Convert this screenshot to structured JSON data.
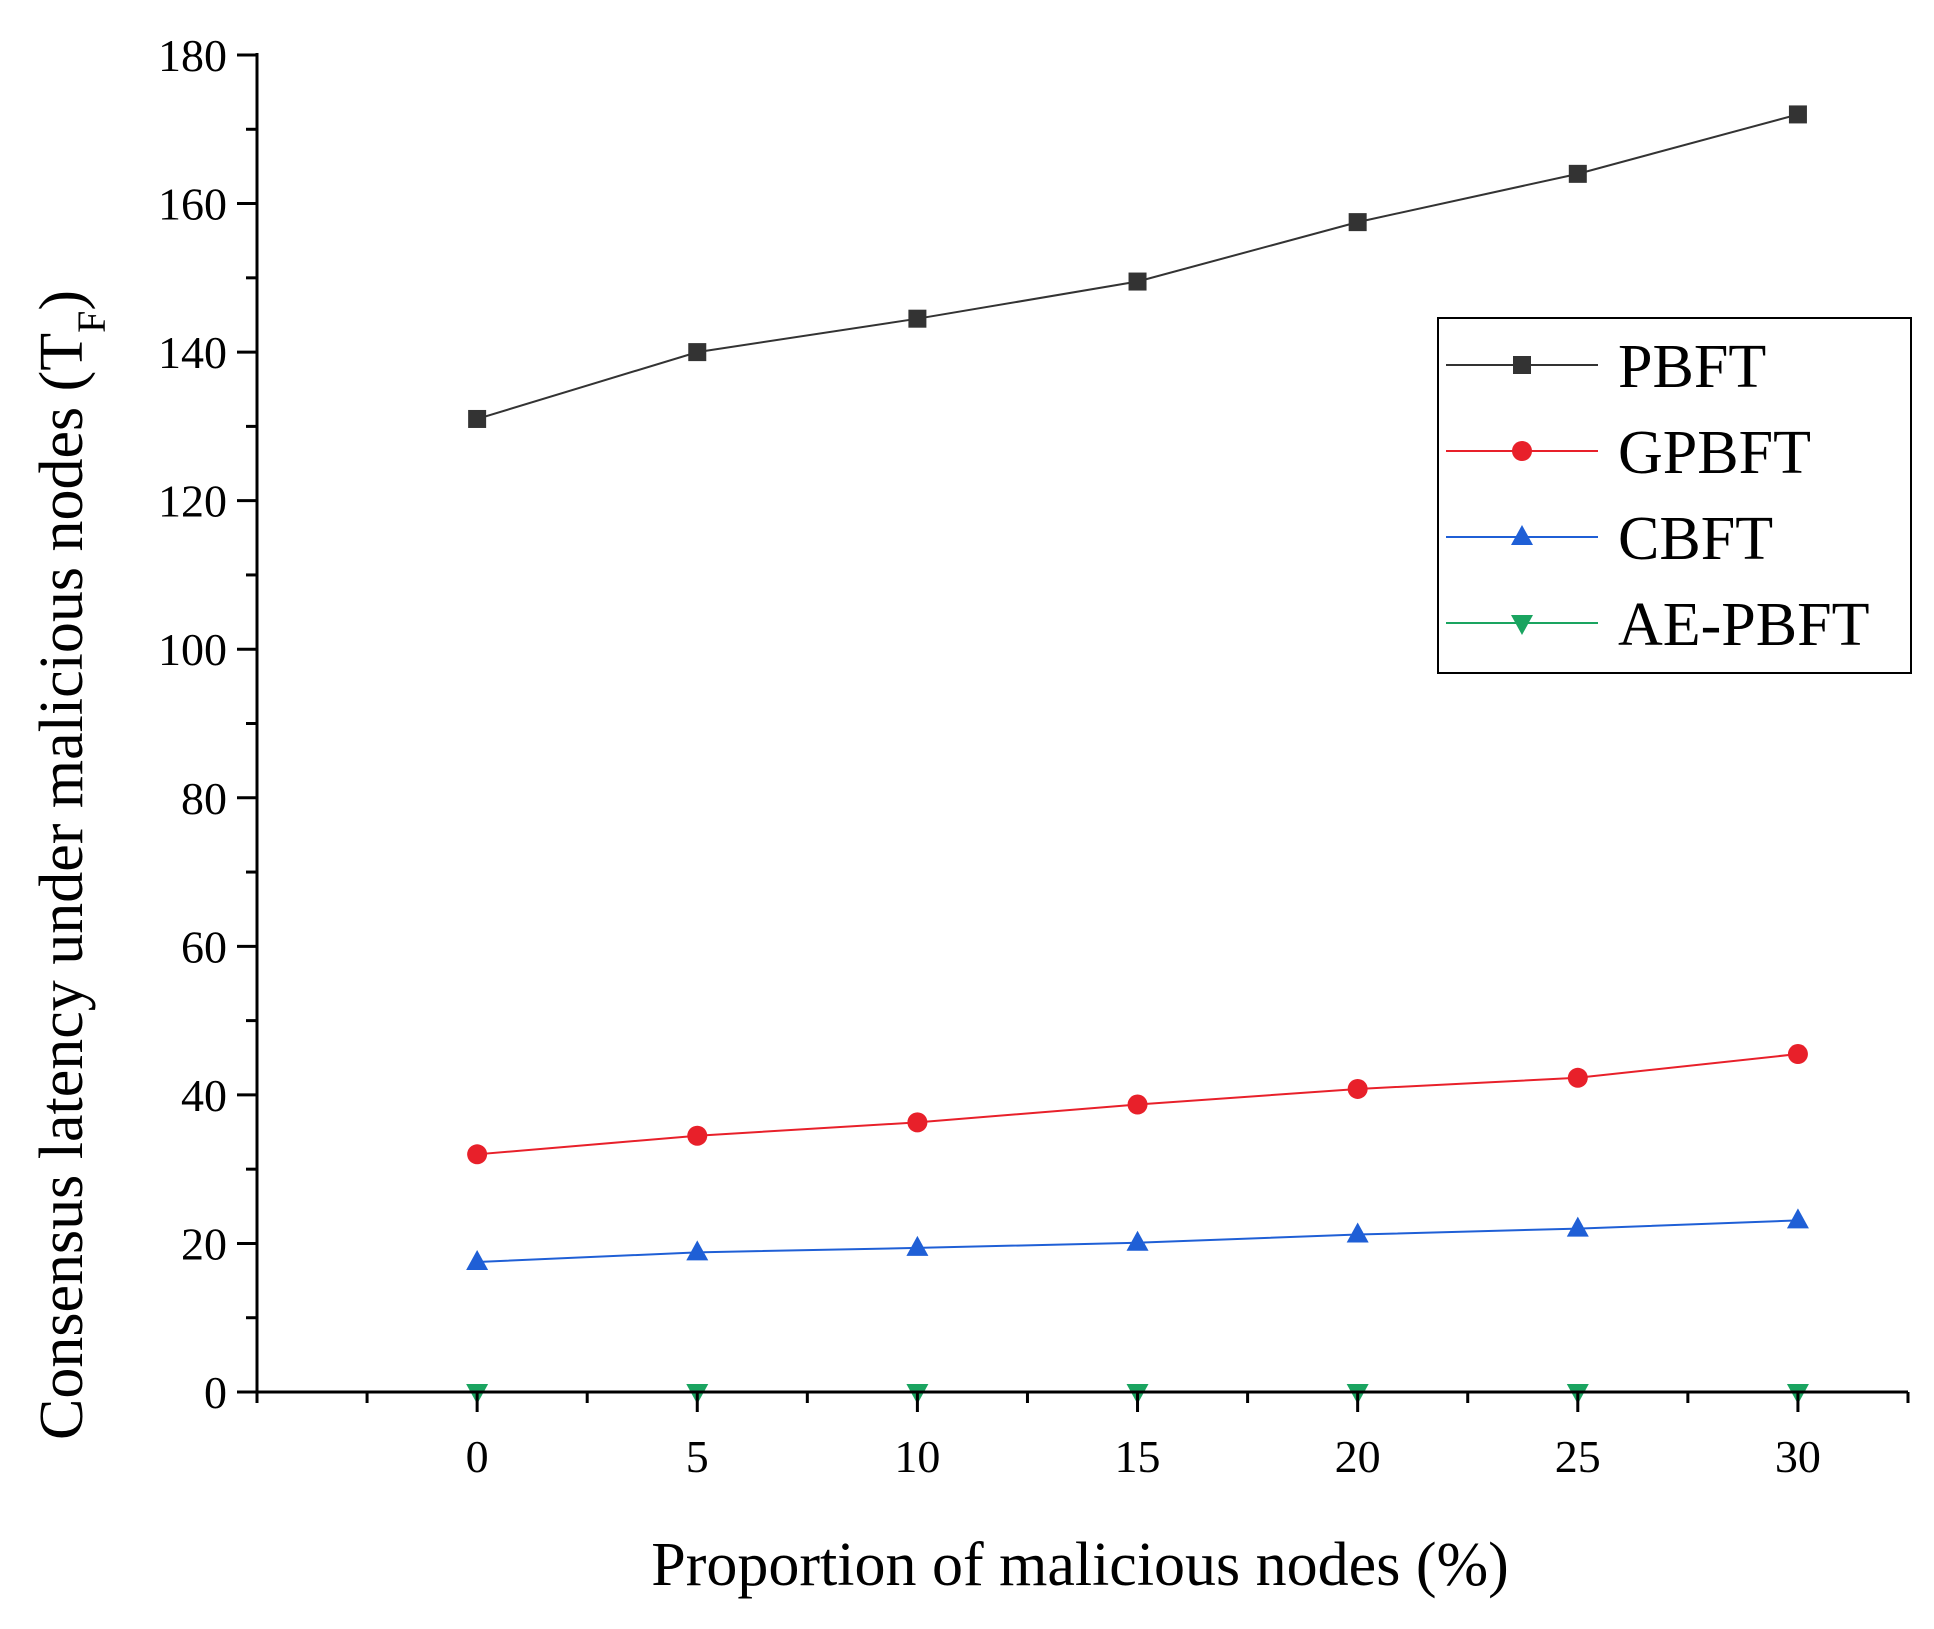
{
  "chart_data": {
    "type": "line",
    "title": "",
    "xlabel": "Proportion of malicious nodes (%)",
    "ylabel_main": "Consensus latency under malicious nodes (T",
    "ylabel_sub": "F",
    "ylabel_close": ")",
    "xlim": [
      -5,
      32.5
    ],
    "ylim": [
      0,
      180
    ],
    "x": [
      0,
      5,
      10,
      15,
      20,
      25,
      30
    ],
    "x_tick_labels": [
      "0",
      "5",
      "10",
      "15",
      "20",
      "25",
      "30"
    ],
    "y_ticks": [
      0,
      20,
      40,
      60,
      80,
      100,
      120,
      140,
      160,
      180
    ],
    "y_tick_labels": [
      "0",
      "20",
      "40",
      "60",
      "80",
      "100",
      "120",
      "140",
      "160",
      "180"
    ],
    "grid": false,
    "legend_position": "right-upper",
    "series": [
      {
        "name": "PBFT",
        "color": "#333333",
        "marker": "square",
        "values": [
          131,
          140,
          144.5,
          149.5,
          157.5,
          164,
          172
        ]
      },
      {
        "name": "GPBFT",
        "color": "#e8202a",
        "marker": "circle",
        "values": [
          32,
          34.5,
          36.3,
          38.7,
          40.8,
          42.3,
          45.5
        ]
      },
      {
        "name": "CBFT",
        "color": "#1f5fd6",
        "marker": "triangle-up",
        "values": [
          17.5,
          18.8,
          19.4,
          20.1,
          21.2,
          22,
          23.1
        ]
      },
      {
        "name": "AE-PBFT",
        "color": "#1aa460",
        "marker": "triangle-down",
        "values": [
          0,
          0,
          0,
          0,
          0,
          0,
          0
        ]
      }
    ]
  }
}
